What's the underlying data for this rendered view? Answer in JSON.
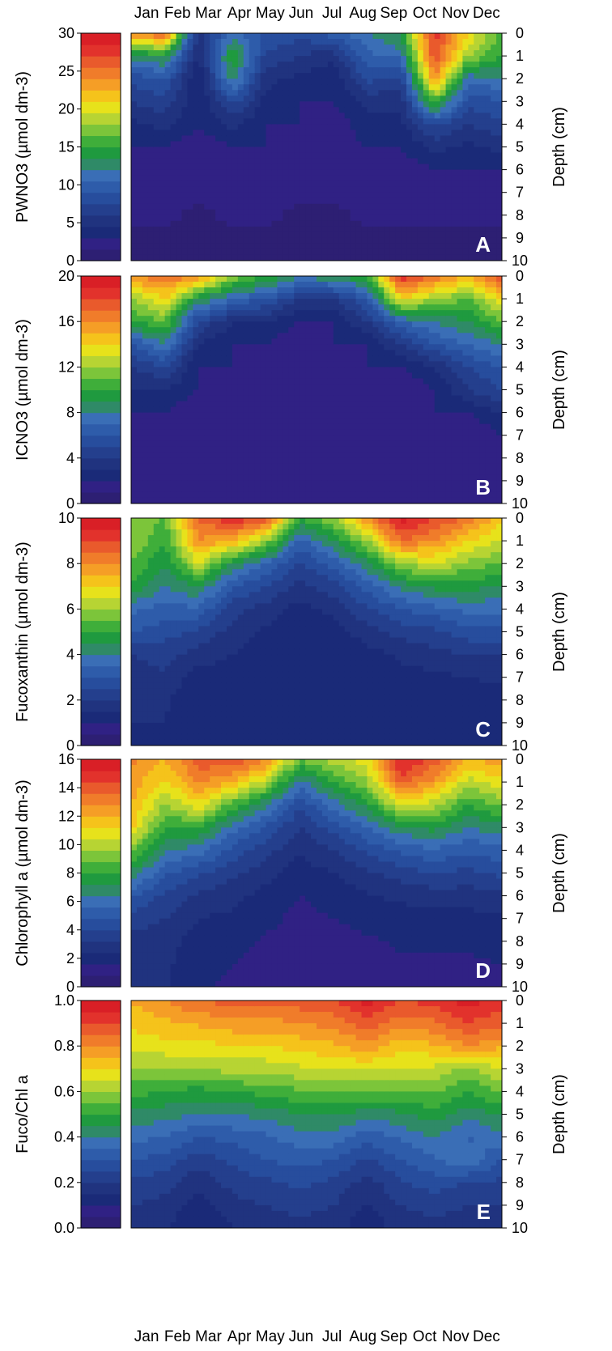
{
  "months": [
    "Jan",
    "Feb",
    "Mar",
    "Apr",
    "May",
    "Jun",
    "Jul",
    "Aug",
    "Sep",
    "Oct",
    "Nov",
    "Dec"
  ],
  "depth_label": "Depth (cm)",
  "depth_ticks": [
    "0",
    "1",
    "2",
    "3",
    "4",
    "5",
    "6",
    "7",
    "8",
    "9",
    "10"
  ],
  "palette": [
    "#2d1f73",
    "#302184",
    "#1a2a78",
    "#20337f",
    "#243f8d",
    "#274d9d",
    "#2e5caa",
    "#3a6eb6",
    "#2f8a67",
    "#1f9a3f",
    "#3fae3a",
    "#7cc53a",
    "#b7d433",
    "#e7e21b",
    "#f5c31b",
    "#f59e26",
    "#f07c2a",
    "#e95a2c",
    "#e2322c",
    "#d91f26"
  ],
  "chart_data": [
    {
      "type": "heatmap",
      "panel_label": "A",
      "colorbar_label": "PWNO3 (µmol dm-3)",
      "colorbar_ticks": [
        "0",
        "5",
        "10",
        "15",
        "20",
        "25",
        "30"
      ],
      "vmin": 0,
      "vmax": 30,
      "x": [
        "Jan",
        "Feb",
        "Mar",
        "Apr",
        "May",
        "Jun",
        "Jul",
        "Aug",
        "Sep",
        "Oct",
        "Nov",
        "Dec"
      ],
      "depth_cm": [
        0,
        1,
        2,
        3,
        4,
        5,
        6,
        7,
        8,
        9,
        10
      ],
      "values": [
        [
          24,
          13,
          8,
          6,
          4,
          3,
          2,
          2,
          2,
          1,
          1
        ],
        [
          26,
          14,
          9,
          7,
          5,
          3,
          2,
          2,
          2,
          1,
          1
        ],
        [
          5,
          4,
          3,
          3,
          3,
          2,
          2,
          2,
          1,
          1,
          1
        ],
        [
          11,
          15,
          13,
          8,
          5,
          3,
          3,
          2,
          2,
          1,
          1
        ],
        [
          9,
          7,
          5,
          4,
          3,
          3,
          2,
          2,
          2,
          1,
          1
        ],
        [
          8,
          6,
          4,
          3,
          3,
          2,
          2,
          2,
          1,
          1,
          1
        ],
        [
          10,
          5,
          3,
          3,
          2,
          2,
          2,
          2,
          1,
          1,
          1
        ],
        [
          12,
          10,
          8,
          5,
          4,
          3,
          2,
          2,
          2,
          1,
          1
        ],
        [
          14,
          11,
          7,
          5,
          4,
          3,
          2,
          2,
          2,
          1,
          1
        ],
        [
          28,
          27,
          24,
          16,
          8,
          5,
          3,
          2,
          2,
          1,
          1
        ],
        [
          21,
          18,
          11,
          8,
          6,
          4,
          3,
          2,
          2,
          1,
          1
        ],
        [
          16,
          15,
          12,
          9,
          7,
          5,
          3,
          2,
          2,
          1,
          1
        ]
      ]
    },
    {
      "type": "heatmap",
      "panel_label": "B",
      "colorbar_label": "ICNO3 (µmol dm-3)",
      "colorbar_ticks": [
        "0",
        "4",
        "8",
        "12",
        "16",
        "20"
      ],
      "vmin": 0,
      "vmax": 20,
      "x": [
        "Jan",
        "Feb",
        "Mar",
        "Apr",
        "May",
        "Jun",
        "Jul",
        "Aug",
        "Sep",
        "Oct",
        "Nov",
        "Dec"
      ],
      "depth_cm": [
        0,
        1,
        2,
        3,
        4,
        5,
        6,
        7,
        8,
        9,
        10
      ],
      "values": [
        [
          16,
          12,
          10,
          6,
          4,
          3,
          2,
          1,
          1,
          1,
          1
        ],
        [
          17,
          14,
          11,
          8,
          5,
          3,
          2,
          2,
          1,
          1,
          1
        ],
        [
          16,
          9,
          5,
          3,
          2,
          2,
          1,
          1,
          1,
          1,
          1
        ],
        [
          12,
          7,
          3,
          2,
          2,
          1,
          1,
          1,
          1,
          1,
          1
        ],
        [
          10,
          6,
          3,
          2,
          1,
          1,
          1,
          1,
          1,
          1,
          1
        ],
        [
          8,
          4,
          2,
          1,
          1,
          1,
          1,
          1,
          1,
          1,
          1
        ],
        [
          9,
          4,
          2,
          2,
          1,
          1,
          1,
          1,
          1,
          1,
          1
        ],
        [
          10,
          6,
          4,
          2,
          2,
          1,
          1,
          1,
          1,
          1,
          1
        ],
        [
          19,
          14,
          7,
          4,
          2,
          1,
          1,
          1,
          1,
          1,
          1
        ],
        [
          17,
          12,
          8,
          6,
          3,
          2,
          2,
          2,
          1,
          1,
          1
        ],
        [
          15,
          11,
          9,
          7,
          5,
          4,
          2,
          1,
          1,
          1,
          1
        ],
        [
          18,
          14,
          11,
          8,
          6,
          5,
          3,
          2,
          1,
          1,
          1
        ]
      ]
    },
    {
      "type": "heatmap",
      "panel_label": "C",
      "colorbar_label": "Fucoxanthin (µmol dm-3)",
      "colorbar_ticks": [
        "0",
        "2",
        "4",
        "6",
        "8",
        "10"
      ],
      "vmin": 0,
      "vmax": 10,
      "x": [
        "Jan",
        "Feb",
        "Mar",
        "Apr",
        "May",
        "Jun",
        "Jul",
        "Aug",
        "Sep",
        "Oct",
        "Nov",
        "Dec"
      ],
      "depth_cm": [
        0,
        1,
        2,
        3,
        4,
        5,
        6,
        7,
        8,
        9,
        10
      ],
      "values": [
        [
          6,
          6,
          5.5,
          5,
          3.6,
          3,
          2,
          1.8,
          1.6,
          1.5,
          1.4
        ],
        [
          5.5,
          5,
          4.5,
          4,
          3.3,
          2.7,
          2.2,
          1.9,
          1.6,
          1.5,
          1.4
        ],
        [
          8.5,
          8,
          6.5,
          4.5,
          3.4,
          2.4,
          1.8,
          1.2,
          1,
          1,
          1
        ],
        [
          9.5,
          7.5,
          4.5,
          3,
          2.2,
          1.8,
          1.5,
          1.3,
          1.1,
          1,
          1
        ],
        [
          9,
          6,
          3.5,
          2.5,
          1.8,
          1.4,
          1.1,
          1,
          1,
          1,
          1
        ],
        [
          5,
          3.3,
          2.4,
          1.8,
          1.3,
          1,
          1,
          1,
          1,
          1,
          1
        ],
        [
          6,
          4.5,
          3.2,
          2.3,
          1.7,
          1.2,
          1,
          1,
          1,
          1,
          1
        ],
        [
          8,
          6,
          4.3,
          3.2,
          2.4,
          1.8,
          1.3,
          1.1,
          1,
          1,
          1
        ],
        [
          9.8,
          8.5,
          6,
          4.2,
          3,
          2.2,
          1.6,
          1.3,
          1.1,
          1,
          1
        ],
        [
          9,
          8,
          6.5,
          4.7,
          3.3,
          2.4,
          1.8,
          1.4,
          1.1,
          1,
          1
        ],
        [
          8.5,
          7,
          5.8,
          4.7,
          3.7,
          2.8,
          2,
          1.5,
          1.2,
          1,
          1
        ],
        [
          7,
          6.5,
          5.5,
          4.5,
          3.6,
          2.8,
          2,
          1.6,
          1.3,
          1.1,
          1
        ]
      ]
    },
    {
      "type": "heatmap",
      "panel_label": "D",
      "colorbar_label": "Chlorophyll a (µmol dm-3)",
      "colorbar_ticks": [
        "0",
        "2",
        "4",
        "6",
        "8",
        "10",
        "12",
        "14",
        "16"
      ],
      "vmin": 0,
      "vmax": 16,
      "x": [
        "Jan",
        "Feb",
        "Mar",
        "Apr",
        "May",
        "Jun",
        "Jul",
        "Aug",
        "Sep",
        "Oct",
        "Nov",
        "Dec"
      ],
      "depth_cm": [
        0,
        1,
        2,
        3,
        4,
        5,
        6,
        7,
        8,
        9,
        10
      ],
      "values": [
        [
          13,
          12.5,
          12,
          11.5,
          9,
          7,
          5,
          3.5,
          3,
          2.8,
          2.7
        ],
        [
          12,
          11,
          9.5,
          8,
          6.5,
          5,
          3.8,
          3.2,
          2.8,
          2.6,
          2.5
        ],
        [
          14,
          13,
          11,
          8,
          6,
          4.2,
          3,
          2.4,
          2,
          1.8,
          1.7
        ],
        [
          14.5,
          12,
          8.5,
          6,
          4.5,
          3.4,
          2.7,
          2.2,
          1.8,
          1.6,
          1.5
        ],
        [
          13,
          10,
          6.5,
          4.6,
          3.5,
          2.7,
          2.1,
          1.8,
          1.5,
          1.4,
          1.4
        ],
        [
          9,
          6,
          4.2,
          3.2,
          2.5,
          2,
          1.6,
          1.4,
          1.3,
          1.2,
          1.2
        ],
        [
          10,
          8,
          6,
          4.3,
          3.2,
          2.4,
          1.9,
          1.6,
          1.4,
          1.3,
          1.2
        ],
        [
          11,
          9.5,
          7.5,
          5.6,
          4.2,
          3.1,
          2.3,
          1.8,
          1.5,
          1.4,
          1.3
        ],
        [
          15.5,
          14,
          10.5,
          7,
          5,
          3.6,
          2.6,
          2,
          1.7,
          1.5,
          1.4
        ],
        [
          14,
          12.5,
          10,
          7.5,
          5.5,
          4,
          2.8,
          2.1,
          1.7,
          1.5,
          1.4
        ],
        [
          12,
          10,
          8,
          6.3,
          4.9,
          3.8,
          2.8,
          2.1,
          1.7,
          1.5,
          1.4
        ],
        [
          12.5,
          11,
          9,
          7,
          5.4,
          4.2,
          3,
          2.3,
          1.8,
          1.6,
          1.5
        ]
      ]
    },
    {
      "type": "heatmap",
      "panel_label": "E",
      "colorbar_label": "Fuco/Chl a",
      "colorbar_ticks": [
        "0.0",
        "0.2",
        "0.4",
        "0.6",
        "0.8",
        "1.0"
      ],
      "vmin": 0,
      "vmax": 1,
      "x": [
        "Jan",
        "Feb",
        "Mar",
        "Apr",
        "May",
        "Jun",
        "Jul",
        "Aug",
        "Sep",
        "Oct",
        "Nov",
        "Dec"
      ],
      "depth_cm": [
        0,
        1,
        2,
        3,
        4,
        5,
        6,
        7,
        8,
        9,
        10
      ],
      "values": [
        [
          0.75,
          0.72,
          0.66,
          0.6,
          0.52,
          0.44,
          0.37,
          0.3,
          0.24,
          0.2,
          0.18
        ],
        [
          0.8,
          0.74,
          0.68,
          0.6,
          0.5,
          0.42,
          0.35,
          0.28,
          0.22,
          0.18,
          0.16
        ],
        [
          0.85,
          0.76,
          0.68,
          0.6,
          0.48,
          0.4,
          0.3,
          0.22,
          0.16,
          0.12,
          0.1
        ],
        [
          0.87,
          0.78,
          0.7,
          0.62,
          0.5,
          0.4,
          0.32,
          0.26,
          0.22,
          0.18,
          0.15
        ],
        [
          0.86,
          0.78,
          0.7,
          0.62,
          0.52,
          0.42,
          0.34,
          0.3,
          0.24,
          0.2,
          0.16
        ],
        [
          0.88,
          0.8,
          0.72,
          0.64,
          0.54,
          0.45,
          0.38,
          0.32,
          0.26,
          0.22,
          0.18
        ],
        [
          0.9,
          0.82,
          0.74,
          0.66,
          0.56,
          0.46,
          0.38,
          0.3,
          0.24,
          0.2,
          0.17
        ],
        [
          0.97,
          0.88,
          0.78,
          0.66,
          0.55,
          0.42,
          0.32,
          0.24,
          0.18,
          0.14,
          0.12
        ],
        [
          0.9,
          0.82,
          0.72,
          0.64,
          0.54,
          0.44,
          0.36,
          0.3,
          0.24,
          0.2,
          0.17
        ],
        [
          0.92,
          0.84,
          0.74,
          0.64,
          0.56,
          0.48,
          0.4,
          0.34,
          0.28,
          0.22,
          0.18
        ],
        [
          0.98,
          0.9,
          0.8,
          0.58,
          0.5,
          0.42,
          0.34,
          0.4,
          0.24,
          0.2,
          0.18
        ],
        [
          0.92,
          0.86,
          0.76,
          0.66,
          0.56,
          0.46,
          0.38,
          0.3,
          0.24,
          0.2,
          0.17
        ]
      ]
    }
  ]
}
